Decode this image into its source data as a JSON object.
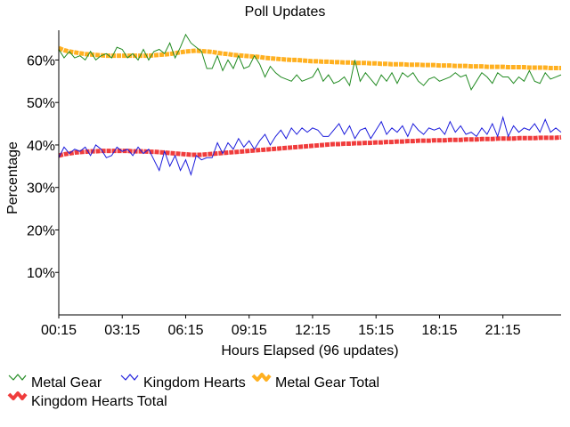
{
  "chart_data": {
    "type": "line",
    "title": "Poll Updates",
    "xlabel": "Hours Elapsed (96 updates)",
    "ylabel": "Percentage",
    "x_tick_labels": [
      "00:15",
      "03:15",
      "06:15",
      "09:15",
      "12:15",
      "15:15",
      "18:15",
      "21:15"
    ],
    "x_tick_index": [
      0,
      12,
      24,
      36,
      48,
      60,
      72,
      84
    ],
    "y_tick_labels": [
      "10%",
      "20%",
      "30%",
      "40%",
      "50%",
      "60%"
    ],
    "y_tick_values": [
      10,
      20,
      30,
      40,
      50,
      60
    ],
    "ylim": [
      0,
      67
    ],
    "num_points": 96,
    "grid": false,
    "legend_position": "bottom-left",
    "series": [
      {
        "name": "Metal Gear",
        "color": "#228b22",
        "style": "thin",
        "values": [
          62.5,
          60.5,
          62.0,
          60.5,
          61.0,
          60.0,
          62.0,
          60.0,
          61.0,
          61.5,
          60.5,
          63.0,
          62.5,
          60.5,
          61.5,
          60.0,
          62.5,
          60.0,
          62.0,
          62.5,
          61.5,
          64.0,
          60.5,
          63.0,
          66.0,
          64.0,
          63.0,
          62.0,
          58.0,
          58.0,
          61.0,
          57.5,
          60.0,
          58.0,
          61.0,
          58.0,
          58.5,
          61.0,
          59.0,
          56.0,
          58.5,
          57.0,
          56.0,
          55.5,
          55.0,
          56.5,
          55.0,
          55.5,
          56.0,
          58.0,
          55.0,
          56.5,
          54.5,
          55.0,
          56.0,
          54.0,
          60.0,
          55.0,
          57.0,
          55.5,
          54.0,
          56.5,
          55.0,
          57.0,
          54.5,
          57.0,
          56.0,
          57.0,
          55.0,
          54.0,
          55.5,
          56.0,
          55.0,
          55.5,
          56.0,
          57.0,
          56.0,
          56.5,
          53.0,
          55.0,
          57.0,
          56.0,
          54.5,
          57.0,
          56.0,
          56.0,
          54.5,
          56.0,
          55.0,
          57.5,
          55.0,
          54.5,
          57.0,
          55.5,
          56.0,
          56.5
        ]
      },
      {
        "name": "Kingdom Hearts",
        "color": "#1c1cdc",
        "style": "thin",
        "values": [
          37.0,
          39.5,
          38.0,
          39.0,
          38.5,
          39.5,
          37.5,
          40.0,
          39.0,
          37.0,
          37.5,
          39.5,
          38.5,
          39.0,
          37.5,
          39.5,
          38.0,
          39.0,
          36.5,
          34.0,
          38.5,
          35.0,
          37.5,
          34.0,
          36.5,
          33.0,
          37.5,
          36.5,
          37.0,
          37.0,
          40.5,
          38.0,
          40.5,
          39.0,
          41.5,
          39.5,
          41.0,
          39.0,
          41.0,
          42.5,
          40.0,
          42.0,
          43.5,
          41.5,
          44.0,
          42.5,
          44.0,
          43.0,
          44.0,
          43.5,
          42.0,
          42.0,
          43.5,
          45.0,
          42.5,
          44.5,
          41.5,
          43.5,
          44.0,
          41.5,
          43.5,
          45.5,
          42.5,
          44.0,
          43.0,
          44.5,
          42.0,
          45.0,
          43.5,
          42.5,
          44.0,
          43.5,
          44.0,
          42.5,
          45.5,
          43.0,
          44.5,
          42.5,
          43.0,
          42.0,
          44.0,
          42.5,
          45.0,
          42.0,
          46.5,
          42.0,
          44.5,
          43.0,
          44.0,
          43.5,
          45.0,
          43.0,
          46.0,
          43.0,
          44.0,
          43.0
        ]
      },
      {
        "name": "Metal Gear Total",
        "color": "#ffb020",
        "style": "thick",
        "values": [
          62.8,
          62.3,
          62.0,
          61.8,
          61.6,
          61.4,
          61.3,
          61.2,
          61.1,
          61.0,
          61.0,
          61.0,
          61.0,
          61.0,
          61.0,
          61.0,
          61.0,
          61.0,
          61.1,
          61.2,
          61.3,
          61.4,
          61.6,
          61.8,
          62.0,
          62.1,
          62.2,
          62.1,
          62.0,
          61.9,
          61.7,
          61.5,
          61.4,
          61.2,
          61.1,
          61.0,
          60.9,
          60.8,
          60.7,
          60.5,
          60.4,
          60.3,
          60.2,
          60.1,
          60.0,
          60.0,
          59.9,
          59.8,
          59.7,
          59.7,
          59.6,
          59.6,
          59.5,
          59.5,
          59.4,
          59.4,
          59.3,
          59.3,
          59.3,
          59.2,
          59.2,
          59.1,
          59.1,
          59.0,
          59.0,
          59.0,
          58.9,
          58.9,
          58.9,
          58.8,
          58.8,
          58.8,
          58.7,
          58.7,
          58.7,
          58.6,
          58.6,
          58.6,
          58.5,
          58.5,
          58.5,
          58.4,
          58.4,
          58.4,
          58.4,
          58.3,
          58.3,
          58.3,
          58.3,
          58.2,
          58.2,
          58.2,
          58.2,
          58.1,
          58.1,
          58.1
        ]
      },
      {
        "name": "Kingdom Hearts Total",
        "color": "#f03c3c",
        "style": "thick",
        "values": [
          37.5,
          37.8,
          38.0,
          38.2,
          38.3,
          38.4,
          38.5,
          38.5,
          38.6,
          38.6,
          38.6,
          38.6,
          38.6,
          38.6,
          38.5,
          38.5,
          38.5,
          38.4,
          38.4,
          38.3,
          38.2,
          38.1,
          38.0,
          37.9,
          37.8,
          37.7,
          37.7,
          37.7,
          37.8,
          37.9,
          38.0,
          38.1,
          38.2,
          38.3,
          38.4,
          38.5,
          38.6,
          38.7,
          38.8,
          38.9,
          39.0,
          39.1,
          39.2,
          39.3,
          39.4,
          39.5,
          39.6,
          39.7,
          39.8,
          39.9,
          40.0,
          40.1,
          40.2,
          40.2,
          40.3,
          40.3,
          40.4,
          40.4,
          40.5,
          40.5,
          40.6,
          40.6,
          40.7,
          40.7,
          40.8,
          40.8,
          40.9,
          40.9,
          41.0,
          41.0,
          41.0,
          41.1,
          41.1,
          41.1,
          41.2,
          41.2,
          41.2,
          41.3,
          41.3,
          41.3,
          41.4,
          41.4,
          41.4,
          41.5,
          41.5,
          41.5,
          41.5,
          41.6,
          41.6,
          41.6,
          41.6,
          41.7,
          41.7,
          41.7,
          41.7,
          41.8
        ]
      }
    ]
  }
}
